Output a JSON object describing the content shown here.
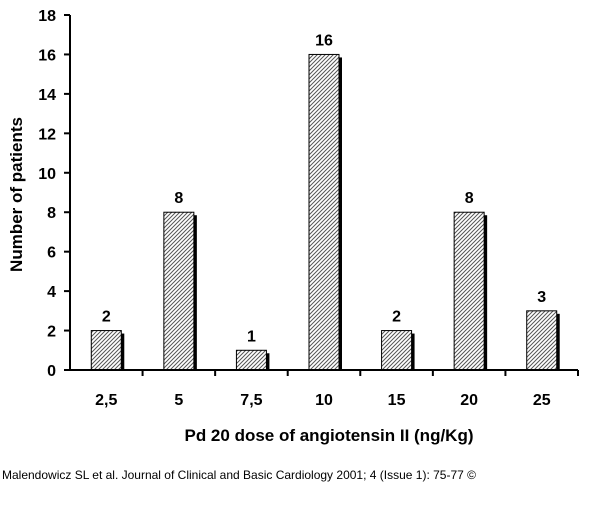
{
  "chart_data": {
    "type": "bar",
    "categories": [
      "2,5",
      "5",
      "7,5",
      "10",
      "15",
      "20",
      "25"
    ],
    "values": [
      2,
      8,
      1,
      16,
      2,
      8,
      3
    ],
    "data_labels": [
      "2",
      "8",
      "1",
      "16",
      "2",
      "8",
      "3"
    ],
    "xlabel": "Pd 20 dose of  angiotensin II (ng/Kg)",
    "ylabel": "Number of patients",
    "ylim": [
      0,
      18
    ],
    "yticks": [
      0,
      2,
      4,
      6,
      8,
      10,
      12,
      14,
      16,
      18
    ],
    "ytick_labels": [
      "0",
      "2",
      "4",
      "6",
      "8",
      "10",
      "12",
      "14",
      "16",
      "18"
    ],
    "grid": false,
    "legend": "none",
    "colors": {
      "bar_fill_light": "#ffffff",
      "bar_fill_dark": "#555555",
      "bar_shadow": "#000000",
      "axis": "#000000"
    }
  },
  "citation": "Malendowicz SL et al. Journal of Clinical and Basic Cardiology 2001; 4 (Issue 1): 75-77 ©"
}
